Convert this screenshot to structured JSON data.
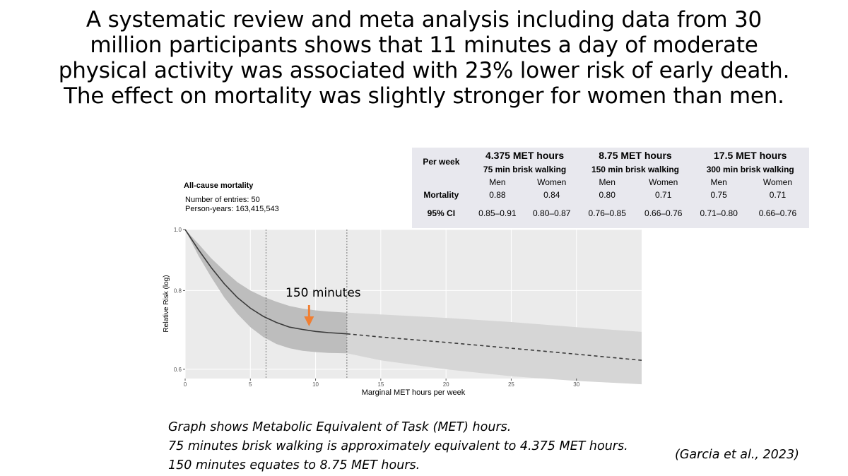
{
  "headline": [
    "A systematic review and meta analysis including data from 30",
    "million participants shows that 11 minutes a day of moderate",
    "physical activity was associated with 23% lower risk of early death.",
    "The effect on mortality was slightly stronger for women than men."
  ],
  "table": {
    "per_week_label": "Per week",
    "mortality_label": "Mortality",
    "ci_label": "95% CI",
    "groups": [
      {
        "met": "4.375 MET hours",
        "walk": "75 min brisk walking"
      },
      {
        "met": "8.75 MET hours",
        "walk": "150 min brisk walking"
      },
      {
        "met": "17.5 MET hours",
        "walk": "300 min brisk walking"
      }
    ],
    "sexes": [
      "Men",
      "Women",
      "Men",
      "Women",
      "Men",
      "Women"
    ],
    "mortality": [
      "0.88",
      "0.84",
      "0.80",
      "0.71",
      "0.75",
      "0.71"
    ],
    "ci": [
      "0.85–0.91",
      "0.80–0.87",
      "0.76–0.85",
      "0.66–0.76",
      "0.71–0.80",
      "0.66–0.76"
    ]
  },
  "chart_data": {
    "type": "line",
    "title": "All-cause mortality",
    "subtitle_lines": [
      "Number of entries: 50",
      "Person-years: 163,415,543"
    ],
    "xlabel": "Marginal MET hours per week",
    "ylabel": "Relative Risk (log)",
    "xlim": [
      0,
      35
    ],
    "ylim": [
      0.58,
      1.0
    ],
    "log_y": true,
    "x_ticks": [
      0,
      5,
      10,
      15,
      20,
      25,
      30
    ],
    "y_ticks": [
      0.6,
      0.8,
      1.0
    ],
    "y_tick_labels": [
      "0.6",
      "0.8",
      "1.0"
    ],
    "grid": true,
    "reference_lines_x": [
      6.2,
      12.4
    ],
    "annotation": {
      "text": "150 minutes",
      "x": 9.5
    },
    "series": [
      {
        "style": "solid",
        "x": [
          0,
          1,
          2,
          3,
          4,
          5,
          6,
          7,
          8,
          9,
          10,
          11,
          12.4
        ],
        "y": [
          1.0,
          0.93,
          0.87,
          0.82,
          0.78,
          0.75,
          0.728,
          0.712,
          0.7,
          0.694,
          0.689,
          0.686,
          0.683
        ],
        "lower": [
          1.0,
          0.91,
          0.84,
          0.78,
          0.735,
          0.7,
          0.675,
          0.658,
          0.648,
          0.642,
          0.639,
          0.637,
          0.636
        ],
        "upper": [
          1.0,
          0.95,
          0.9,
          0.86,
          0.825,
          0.8,
          0.782,
          0.768,
          0.756,
          0.749,
          0.744,
          0.741,
          0.738
        ]
      },
      {
        "style": "dashed",
        "x": [
          12.4,
          15,
          20,
          25,
          30,
          35
        ],
        "y": [
          0.683,
          0.675,
          0.662,
          0.648,
          0.634,
          0.62
        ],
        "lower": [
          0.636,
          0.62,
          0.6,
          0.585,
          0.575,
          0.568
        ],
        "upper": [
          0.738,
          0.733,
          0.724,
          0.713,
          0.7,
          0.688
        ]
      }
    ]
  },
  "caption": [
    "Graph shows Metabolic Equivalent of Task (MET) hours.",
    "75 minutes brisk walking is approximately equivalent to 4.375 MET hours.",
    "150 minutes equates to 8.75 MET hours."
  ],
  "citation": "(Garcia et al., 2023)",
  "colors": {
    "panel_bg": "#ebebeb",
    "table_bg": "#e8e8ee",
    "ci_band_dark": "#bdbdbd",
    "ci_band_light": "#d6d6d6",
    "line": "#3a3a3a",
    "arrow": "#f07f33"
  }
}
